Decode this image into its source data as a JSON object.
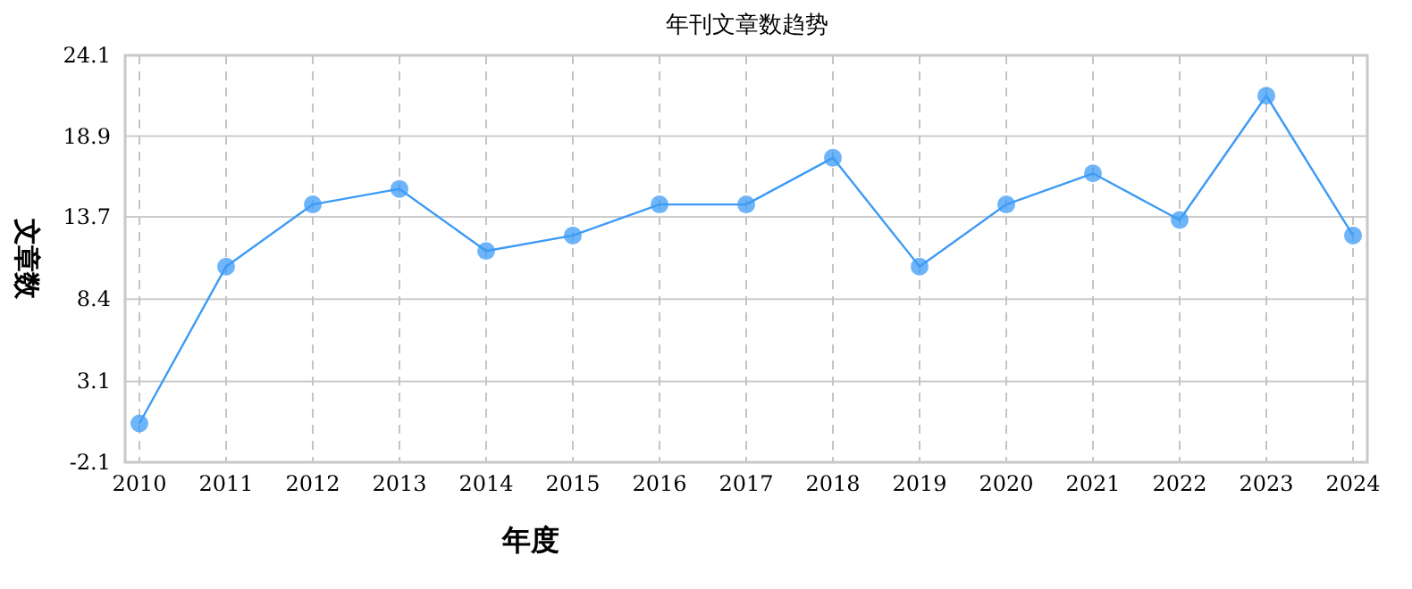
{
  "chart_data": {
    "type": "line",
    "title": "年刊文章数趋势",
    "xlabel": "年度",
    "ylabel": "文章数",
    "categories": [
      "2010",
      "2011",
      "2012",
      "2013",
      "2014",
      "2015",
      "2016",
      "2017",
      "2018",
      "2019",
      "2020",
      "2021",
      "2022",
      "2023",
      "2024"
    ],
    "series": [
      {
        "color": "#3d9bf5",
        "values": [
          0.4,
          10.5,
          14.5,
          15.5,
          11.5,
          12.5,
          14.5,
          14.5,
          17.5,
          10.5,
          14.5,
          16.5,
          13.5,
          21.5,
          12.5
        ]
      }
    ],
    "ylim": [
      -2.1,
      24.1
    ],
    "yticks": [
      -2.1,
      3.1,
      8.4,
      13.7,
      18.9,
      24.1
    ],
    "grid": true,
    "marker": "circle",
    "line_style": "solid"
  }
}
